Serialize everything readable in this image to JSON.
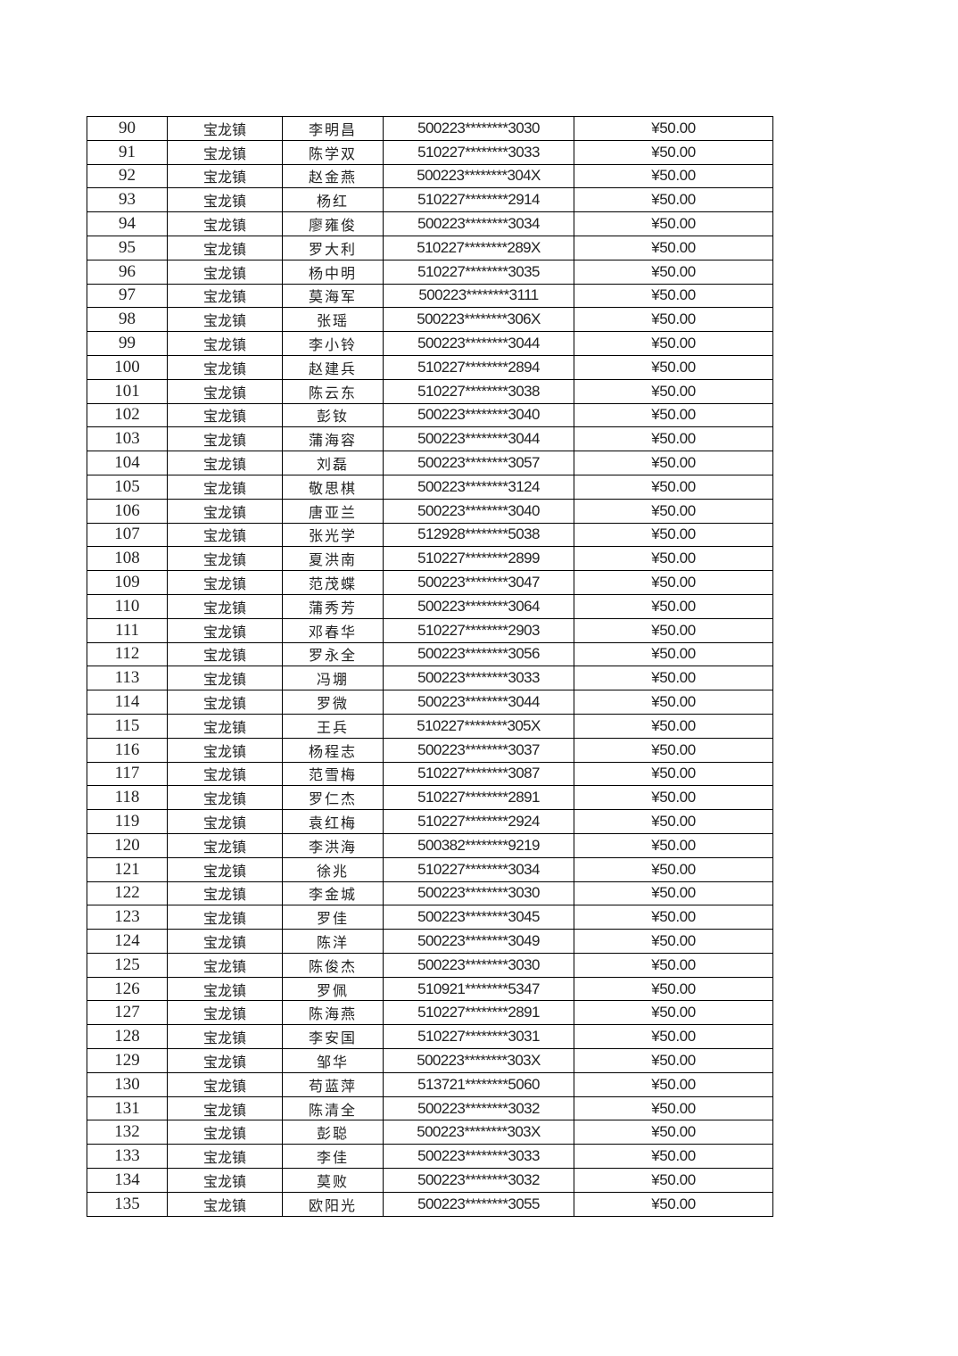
{
  "table": {
    "rows": [
      [
        "90",
        "宝龙镇",
        "李明昌",
        "500223********3030",
        "¥50.00"
      ],
      [
        "91",
        "宝龙镇",
        "陈学双",
        "510227********3033",
        "¥50.00"
      ],
      [
        "92",
        "宝龙镇",
        "赵金燕",
        "500223********304X",
        "¥50.00"
      ],
      [
        "93",
        "宝龙镇",
        "杨红",
        "510227********2914",
        "¥50.00"
      ],
      [
        "94",
        "宝龙镇",
        "廖雍俊",
        "500223********3034",
        "¥50.00"
      ],
      [
        "95",
        "宝龙镇",
        "罗大利",
        "510227********289X",
        "¥50.00"
      ],
      [
        "96",
        "宝龙镇",
        "杨中明",
        "510227********3035",
        "¥50.00"
      ],
      [
        "97",
        "宝龙镇",
        "莫海军",
        "500223********3111",
        "¥50.00"
      ],
      [
        "98",
        "宝龙镇",
        "张瑶",
        "500223********306X",
        "¥50.00"
      ],
      [
        "99",
        "宝龙镇",
        "李小铃",
        "500223********3044",
        "¥50.00"
      ],
      [
        "100",
        "宝龙镇",
        "赵建兵",
        "510227********2894",
        "¥50.00"
      ],
      [
        "101",
        "宝龙镇",
        "陈云东",
        "510227********3038",
        "¥50.00"
      ],
      [
        "102",
        "宝龙镇",
        "彭钕",
        "500223********3040",
        "¥50.00"
      ],
      [
        "103",
        "宝龙镇",
        "蒲海容",
        "500223********3044",
        "¥50.00"
      ],
      [
        "104",
        "宝龙镇",
        "刘磊",
        "500223********3057",
        "¥50.00"
      ],
      [
        "105",
        "宝龙镇",
        "敬思棋",
        "500223********3124",
        "¥50.00"
      ],
      [
        "106",
        "宝龙镇",
        "唐亚兰",
        "500223********3040",
        "¥50.00"
      ],
      [
        "107",
        "宝龙镇",
        "张光学",
        "512928********5038",
        "¥50.00"
      ],
      [
        "108",
        "宝龙镇",
        "夏洪南",
        "510227********2899",
        "¥50.00"
      ],
      [
        "109",
        "宝龙镇",
        "范茂蝶",
        "500223********3047",
        "¥50.00"
      ],
      [
        "110",
        "宝龙镇",
        "蒲秀芳",
        "500223********3064",
        "¥50.00"
      ],
      [
        "111",
        "宝龙镇",
        "邓春华",
        "510227********2903",
        "¥50.00"
      ],
      [
        "112",
        "宝龙镇",
        "罗永全",
        "500223********3056",
        "¥50.00"
      ],
      [
        "113",
        "宝龙镇",
        "冯堋",
        "500223********3033",
        "¥50.00"
      ],
      [
        "114",
        "宝龙镇",
        "罗微",
        "500223********3044",
        "¥50.00"
      ],
      [
        "115",
        "宝龙镇",
        "王兵",
        "510227********305X",
        "¥50.00"
      ],
      [
        "116",
        "宝龙镇",
        "杨程志",
        "500223********3037",
        "¥50.00"
      ],
      [
        "117",
        "宝龙镇",
        "范雪梅",
        "510227********3087",
        "¥50.00"
      ],
      [
        "118",
        "宝龙镇",
        "罗仁杰",
        "510227********2891",
        "¥50.00"
      ],
      [
        "119",
        "宝龙镇",
        "袁红梅",
        "510227********2924",
        "¥50.00"
      ],
      [
        "120",
        "宝龙镇",
        "李洪海",
        "500382********9219",
        "¥50.00"
      ],
      [
        "121",
        "宝龙镇",
        "徐兆",
        "510227********3034",
        "¥50.00"
      ],
      [
        "122",
        "宝龙镇",
        "李金城",
        "500223********3030",
        "¥50.00"
      ],
      [
        "123",
        "宝龙镇",
        "罗佳",
        "500223********3045",
        "¥50.00"
      ],
      [
        "124",
        "宝龙镇",
        "陈洋",
        "500223********3049",
        "¥50.00"
      ],
      [
        "125",
        "宝龙镇",
        "陈俊杰",
        "500223********3030",
        "¥50.00"
      ],
      [
        "126",
        "宝龙镇",
        "罗佩",
        "510921********5347",
        "¥50.00"
      ],
      [
        "127",
        "宝龙镇",
        "陈海燕",
        "510227********2891",
        "¥50.00"
      ],
      [
        "128",
        "宝龙镇",
        "李安国",
        "510227********3031",
        "¥50.00"
      ],
      [
        "129",
        "宝龙镇",
        "邹华",
        "500223********303X",
        "¥50.00"
      ],
      [
        "130",
        "宝龙镇",
        "苟蓝萍",
        "513721********5060",
        "¥50.00"
      ],
      [
        "131",
        "宝龙镇",
        "陈清全",
        "500223********3032",
        "¥50.00"
      ],
      [
        "132",
        "宝龙镇",
        "彭聪",
        "500223********303X",
        "¥50.00"
      ],
      [
        "133",
        "宝龙镇",
        "李佳",
        "500223********3033",
        "¥50.00"
      ],
      [
        "134",
        "宝龙镇",
        "莫败",
        "500223********3032",
        "¥50.00"
      ],
      [
        "135",
        "宝龙镇",
        "欧阳光",
        "500223********3055",
        "¥50.00"
      ]
    ]
  }
}
